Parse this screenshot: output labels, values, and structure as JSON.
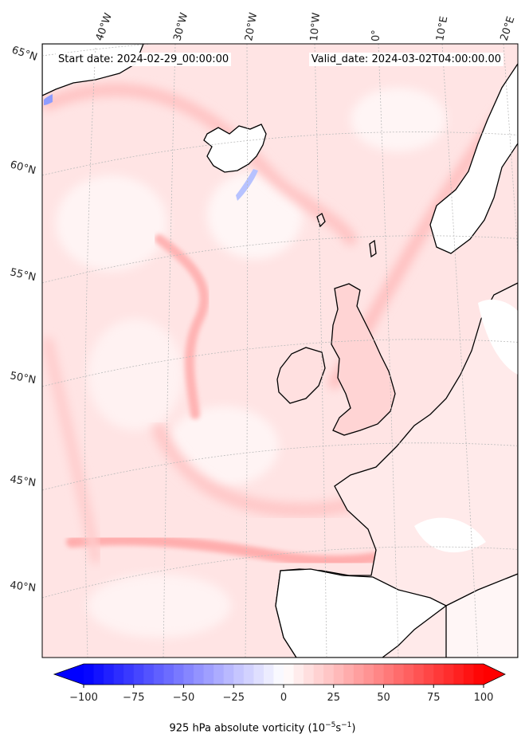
{
  "header": {
    "start_date": "Start date: 2024-02-29_00:00:00",
    "valid_date": "Valid_date: 2024-03-02T04:00:00.00"
  },
  "map": {
    "projection": "polar-stereographic",
    "lon_labels": [
      "40°W",
      "30°W",
      "20°W",
      "10°W",
      "0°",
      "10°E",
      "20°E"
    ],
    "lat_labels": [
      "65°N",
      "60°N",
      "55°N",
      "50°N",
      "45°N",
      "40°N"
    ],
    "coastline_color": "#000000",
    "gridline_color": "#bbbbbb"
  },
  "colorbar": {
    "cmap": "bwr",
    "vmin": -100,
    "vmax": 100,
    "extend": "both",
    "ticks": [
      "−100",
      "−75",
      "−50",
      "−25",
      "0",
      "25",
      "50",
      "75",
      "100"
    ],
    "title_text": "925 hPa absolute vorticity (10",
    "title_exp1": "−5",
    "title_mid": "s",
    "title_exp2": "−1",
    "title_end": ")",
    "min_color": "#0000ff",
    "mid_color": "#ffffff",
    "max_color": "#ff0000"
  }
}
